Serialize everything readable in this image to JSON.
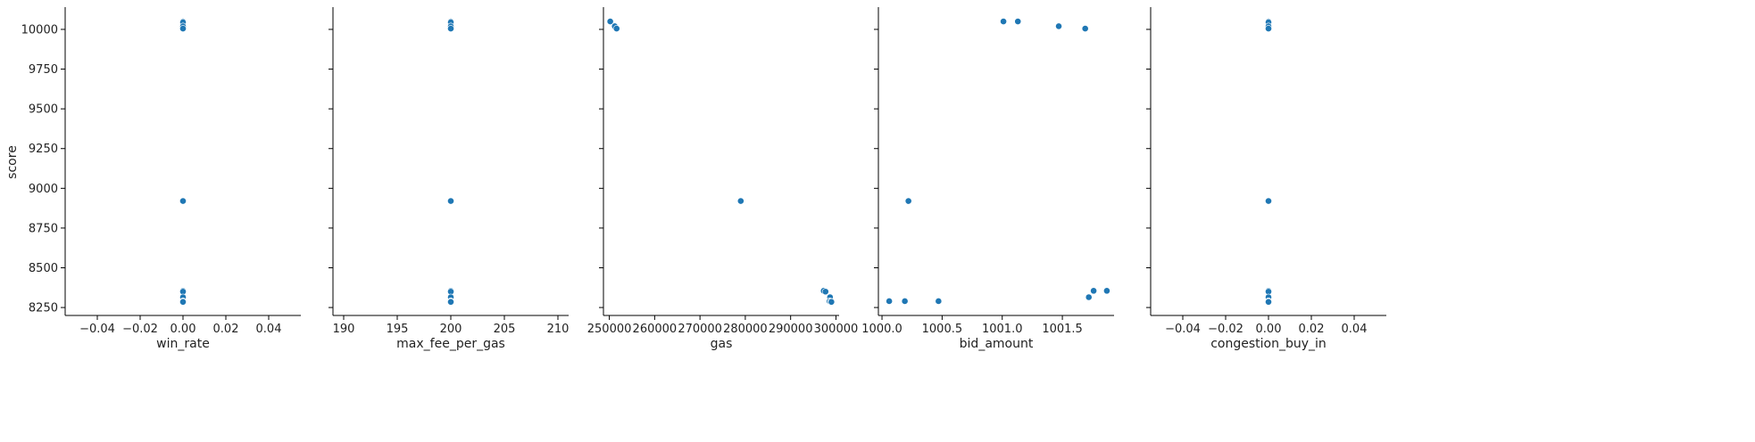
{
  "chart_data": {
    "type": "scatter",
    "shared_y": true,
    "ylabel": "score",
    "ylim": [
      8200,
      10140
    ],
    "yticks": [
      8250,
      8500,
      8750,
      9000,
      9250,
      9500,
      9750,
      10000
    ],
    "ytick_labels": [
      "8250",
      "8500",
      "8750",
      "9000",
      "9250",
      "9500",
      "9750",
      "10000"
    ],
    "marker_color": "#1f77b4",
    "marker_edge_color": "#ffffff",
    "grid": false,
    "panels": [
      {
        "xlabel": "win_rate",
        "xlim": [
          -0.055,
          0.055
        ],
        "xticks": [
          -0.04,
          -0.02,
          0.0,
          0.02,
          0.04
        ],
        "xtick_labels": [
          "−0.04",
          "−0.02",
          "0.00",
          "0.02",
          "0.04"
        ],
        "points": [
          {
            "x": 0.0,
            "y": 10050
          },
          {
            "x": 0.0,
            "y": 10045
          },
          {
            "x": 0.0,
            "y": 10020
          },
          {
            "x": 0.0,
            "y": 10005
          },
          {
            "x": 0.0,
            "y": 8920
          },
          {
            "x": 0.0,
            "y": 8355
          },
          {
            "x": 0.0,
            "y": 8350
          },
          {
            "x": 0.0,
            "y": 8315
          },
          {
            "x": 0.0,
            "y": 8290
          },
          {
            "x": 0.0,
            "y": 8288
          },
          {
            "x": 0.0,
            "y": 8285
          }
        ]
      },
      {
        "xlabel": "max_fee_per_gas",
        "xlim": [
          189,
          211
        ],
        "xticks": [
          190,
          195,
          200,
          205,
          210
        ],
        "xtick_labels": [
          "190",
          "195",
          "200",
          "205",
          "210"
        ],
        "points": [
          {
            "x": 200,
            "y": 10050
          },
          {
            "x": 200,
            "y": 10045
          },
          {
            "x": 200,
            "y": 10020
          },
          {
            "x": 200,
            "y": 10005
          },
          {
            "x": 200,
            "y": 8920
          },
          {
            "x": 200,
            "y": 8355
          },
          {
            "x": 200,
            "y": 8350
          },
          {
            "x": 200,
            "y": 8315
          },
          {
            "x": 200,
            "y": 8290
          },
          {
            "x": 200,
            "y": 8288
          },
          {
            "x": 200,
            "y": 8285
          }
        ]
      },
      {
        "xlabel": "gas",
        "xlim": [
          248700,
          300700
        ],
        "xticks": [
          250000,
          260000,
          270000,
          280000,
          290000,
          300000
        ],
        "xtick_labels": [
          "250000",
          "260000",
          "270000",
          "280000",
          "290000",
          "300000"
        ],
        "points": [
          {
            "x": 250200,
            "y": 10050
          },
          {
            "x": 251200,
            "y": 10020
          },
          {
            "x": 251600,
            "y": 10005
          },
          {
            "x": 279000,
            "y": 8920
          },
          {
            "x": 297300,
            "y": 8355
          },
          {
            "x": 297700,
            "y": 8350
          },
          {
            "x": 298700,
            "y": 8315
          },
          {
            "x": 298600,
            "y": 8290
          },
          {
            "x": 298900,
            "y": 8288
          },
          {
            "x": 299000,
            "y": 8285
          }
        ]
      },
      {
        "xlabel": "bid_amount",
        "xlim": [
          999.97,
          1001.93
        ],
        "xticks": [
          1000.0,
          1000.5,
          1001.0,
          1001.5
        ],
        "xtick_labels": [
          "1000.0",
          "1000.5",
          "1001.0",
          "1001.5"
        ],
        "points": [
          {
            "x": 1001.01,
            "y": 10050
          },
          {
            "x": 1001.13,
            "y": 10050
          },
          {
            "x": 1001.47,
            "y": 10020
          },
          {
            "x": 1001.69,
            "y": 10005
          },
          {
            "x": 1000.22,
            "y": 8920
          },
          {
            "x": 1001.87,
            "y": 8355
          },
          {
            "x": 1001.76,
            "y": 8355
          },
          {
            "x": 1001.72,
            "y": 8315
          },
          {
            "x": 1000.06,
            "y": 8290
          },
          {
            "x": 1000.19,
            "y": 8290
          },
          {
            "x": 1000.47,
            "y": 8290
          }
        ]
      },
      {
        "xlabel": "congestion_buy_in",
        "xlim": [
          -0.055,
          0.055
        ],
        "xticks": [
          -0.04,
          -0.02,
          0.0,
          0.02,
          0.04
        ],
        "xtick_labels": [
          "−0.04",
          "−0.02",
          "0.00",
          "0.02",
          "0.04"
        ],
        "points": [
          {
            "x": 0.0,
            "y": 10050
          },
          {
            "x": 0.0,
            "y": 10045
          },
          {
            "x": 0.0,
            "y": 10020
          },
          {
            "x": 0.0,
            "y": 10005
          },
          {
            "x": 0.0,
            "y": 8920
          },
          {
            "x": 0.0,
            "y": 8355
          },
          {
            "x": 0.0,
            "y": 8350
          },
          {
            "x": 0.0,
            "y": 8315
          },
          {
            "x": 0.0,
            "y": 8290
          },
          {
            "x": 0.0,
            "y": 8288
          },
          {
            "x": 0.0,
            "y": 8285
          }
        ]
      }
    ]
  }
}
